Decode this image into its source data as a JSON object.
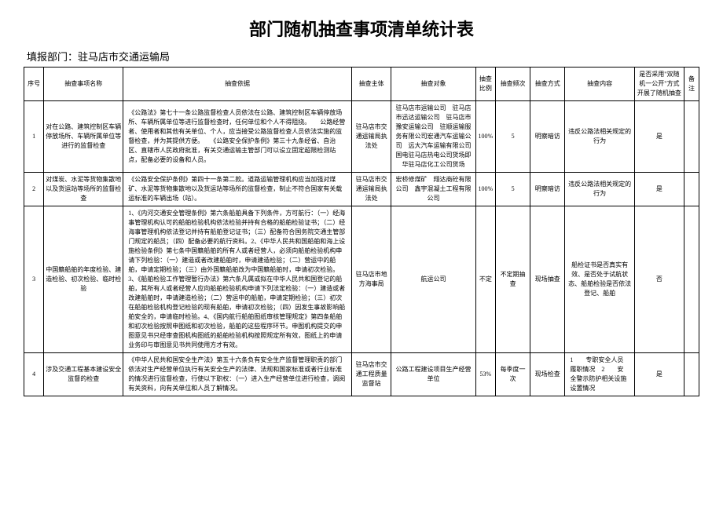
{
  "title": "部门随机抽查事项清单统计表",
  "subtitle": "填报部门：驻马店市交通运输局",
  "headers": {
    "seq": "序号",
    "name": "抽查事项名称",
    "basis": "抽查依据",
    "subject": "抽查主体",
    "object": "抽查对象",
    "ratio": "抽查比例",
    "freq": "抽查频次",
    "method": "抽查方式",
    "content": "抽查内容",
    "adopt": "是否采用\"双随机一公开\"方式开展了随机抽查",
    "note": "备注"
  },
  "rows": [
    {
      "seq": "1",
      "name": "对在公路、建筑控制区车辆停放场所、车辆所属单位等进行的监督检查",
      "basis": "《公路法》第七十一条公路监督检查人员依法在公路、建筑控制区车辆停放场所、车辆所属单位等进行监督检查时，任何单位和个人不得阻挠。　　公路经营者、使用者和其他有关单位、个人，应当接受公路监督检查人员依法实施的监督检查，并为其提供方便。　　《公路安全保护条例》第三十九条经省、自治区、直辖市人民政府批准，有关交通运输主管部门可以设立固定超限检测站点，配备必要的设备和人员。",
      "subject": "驻马店市交通运输局执法处",
      "object": "驻马店市运输公司　驻马店市迅达运输公司　驻马店市豫安运输公司　驻顺运输服务有限公司宏通汽车运输公司　远大汽车运输有限公司国电驻马店热电公司货场即华驻马店化工公司货场",
      "ratio": "100%",
      "freq": "5",
      "method": "明察暗访",
      "content": "违反公路法相关规定的行为",
      "adopt": "是",
      "note": ""
    },
    {
      "seq": "2",
      "name": "对煤炭、水泥等货物集散地以及货运站等场所的监督检查",
      "basis": "《公路安全保护条例》第四十一条第二款。道路运输管理机构应当加强对煤矿、水泥等货物集散地以及货运站等场所的监督检查，制止不符合国家有关载运标准的车辆出场（站）。",
      "subject": "驻马店市交通运输局执法处",
      "object": "宏桥修煤矿　翔达商砼有限公司　鑫宇混凝土工程有限公司",
      "ratio": "100%",
      "freq": "5",
      "method": "明察暗访",
      "content": "违反公路法相关规定的行为",
      "adopt": "是",
      "note": ""
    },
    {
      "seq": "3",
      "name": "中国籍船舶的年度检验、建造检验、初次检验、临时检验",
      "basis": "1、《内河交通安全管理条例》第六条船舶具备下列条件，方可航行：（一）经海事管理机构认可的船舶检验机构依法检验并持有合格的船舶检验证书；（二）经海事管理机构依法登记并持有船舶登记证书；（三）配备符合国务院交通主管部门规定的船员；（四）配备必要的航行资料。2、《中华人民共和国船舶和海上设施检验条例》第七条中国籍船舶的所有人或者经营人，必须向船舶检验机构申请下列检验：（一）建造或者改建船舶时，申请建造检验；（二）营运中的船舶，申请定期检验；（三）由外国籍船舶改为中国籍船舶时，申请初次检验。3、《船舶检验工作管理暂行办法》第六条凡属或拟在中华人民共和国登记的船舶，其所有人或者经营人应向船舶检验机构申请下列法定检验：（一）建造或者改建船舶时，申请建造检验；（二）营运中的船舶，申请定期检验；（三）初次在船舶检验机构登记检验的现有船舶，申请初次检验；（四）因发生事故影响船舶安全的，申请临时检验。4、《国内航行船舶图纸审核管理规定》第四条船舶和初次检验按照申图纸和初次检验，船舶的这些程序环节。申图机构提交的申图意见书只经审查图机构图纸的船舶检验机构按照规定所有效，图纸上的申请业务印与审图意见书共同使用方才有效。",
      "subject": "驻马店市地方海事局",
      "object": "航运公司",
      "ratio": "不定",
      "freq": "不定期抽查",
      "method": "现场抽查",
      "content": "船检证书是否真实有效、是否处于试航状态、船舶检验是否依法登记、船舶",
      "adopt": "否",
      "note": ""
    },
    {
      "seq": "4",
      "name": "涉及交通工程基本建设安全监督的检查",
      "basis": "《中华人民共和国安全生产法》第五十六条负有安全生产监督管理职责的部门依法对生产经营单位执行有关安全生产的法律、法规和国家标准或者行业标准的情况进行监督检查，行使以下职权：（一）进入生产经营单位进行检查，调阅有关资料，向有关单位和人员了解情况。",
      "subject": "驻马店市交通工程质量监督站",
      "object": "公路工程建设项目生产经营单位",
      "ratio": "53%",
      "freq": "每季度一次",
      "method": "现场检查",
      "content": "1　　专职安全人员履职情况　2　　安全警示防护相关设施设置情况",
      "adopt": "是",
      "note": ""
    }
  ]
}
